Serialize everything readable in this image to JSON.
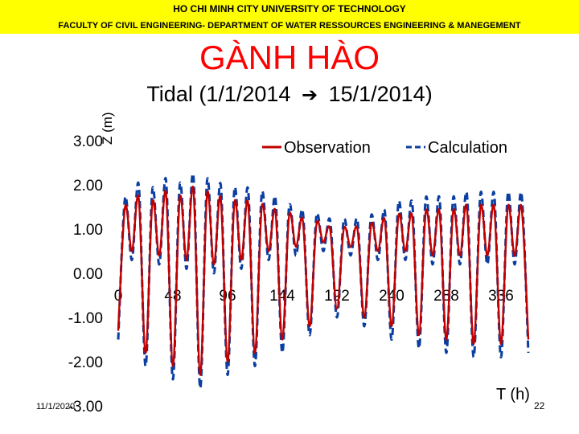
{
  "header": {
    "university": "HO CHI MINH CITY UNIVERSITY OF TECHNOLOGY",
    "faculty": "FACULTY OF CIVIL ENGINEERING- DEPARTMENT OF WATER RESSOURCES ENGINEERING & MANEGEMENT",
    "band_color": "#ffff00"
  },
  "slide": {
    "title": "GÀNH HÀO",
    "title_color": "#ff0000",
    "subtitle_start": "Tidal (1/1/2014",
    "subtitle_arrow": "➔",
    "subtitle_end": "15/1/2014)",
    "footer_date": "11/1/2020",
    "page_number": "22"
  },
  "chart_data": {
    "type": "line",
    "xlabel": "T (h)",
    "ylabel": "Z (m)",
    "xlim": [
      0,
      360
    ],
    "ylim": [
      -3,
      3
    ],
    "x_ticks": [
      0,
      48,
      96,
      144,
      192,
      240,
      288,
      336
    ],
    "x_tick_labels": [
      "0",
      "48",
      "96",
      "144",
      "192",
      "240",
      "288",
      "336"
    ],
    "y_ticks": [
      3,
      2,
      1,
      0,
      -1,
      -2,
      -3
    ],
    "y_tick_labels": [
      "3.00",
      "2.00",
      "1.00",
      "0.00",
      "-1.00",
      "-2.00",
      "-3.00"
    ],
    "legend_placement": "top-right",
    "x": [
      0,
      6,
      12,
      18,
      24,
      30,
      36,
      42,
      48,
      54,
      60,
      66,
      72,
      78,
      84,
      90,
      96,
      102,
      108,
      114,
      120,
      126,
      132,
      138,
      144,
      150,
      156,
      162,
      168,
      174,
      180,
      186,
      192,
      198,
      204,
      210,
      216,
      222,
      228,
      234,
      240,
      246,
      252,
      258,
      264,
      270,
      276,
      282,
      288,
      294,
      300,
      306,
      312,
      318,
      324,
      330,
      336,
      342,
      348,
      354,
      360
    ],
    "series": [
      {
        "name": "Observation",
        "color": "#c00000",
        "style": "solid",
        "values": [
          -1.3,
          1.5,
          0.5,
          1.7,
          -1.8,
          1.6,
          0.4,
          1.8,
          -2.1,
          1.7,
          0.3,
          1.9,
          -2.3,
          1.8,
          0.2,
          1.7,
          -2.0,
          1.6,
          0.3,
          1.6,
          -1.8,
          1.5,
          0.5,
          1.4,
          -1.5,
          1.3,
          0.6,
          1.2,
          -1.2,
          1.1,
          0.7,
          1.0,
          -0.8,
          1.0,
          0.6,
          1.0,
          -1.0,
          1.1,
          0.5,
          1.2,
          -1.2,
          1.3,
          0.5,
          1.3,
          -1.4,
          1.4,
          0.4,
          1.4,
          -1.5,
          1.4,
          0.4,
          1.5,
          -1.6,
          1.5,
          0.4,
          1.5,
          -1.6,
          1.5,
          0.4,
          1.5,
          -1.5
        ]
      },
      {
        "name": "Calculation",
        "color": "#0a3ea0",
        "style": "dashed",
        "values": [
          -1.5,
          1.7,
          0.3,
          2.0,
          -2.1,
          1.9,
          0.2,
          2.1,
          -2.4,
          2.0,
          0.1,
          2.2,
          -2.6,
          2.1,
          0.0,
          2.0,
          -2.3,
          1.9,
          0.1,
          1.9,
          -2.1,
          1.8,
          0.3,
          1.7,
          -1.8,
          1.5,
          0.4,
          1.4,
          -1.4,
          1.3,
          0.5,
          1.2,
          -1.0,
          1.2,
          0.4,
          1.2,
          -1.2,
          1.3,
          0.3,
          1.4,
          -1.5,
          1.6,
          0.3,
          1.6,
          -1.7,
          1.7,
          0.2,
          1.7,
          -1.8,
          1.7,
          0.2,
          1.8,
          -1.9,
          1.8,
          0.2,
          1.8,
          -1.9,
          1.8,
          0.2,
          1.8,
          -1.8
        ]
      }
    ]
  }
}
